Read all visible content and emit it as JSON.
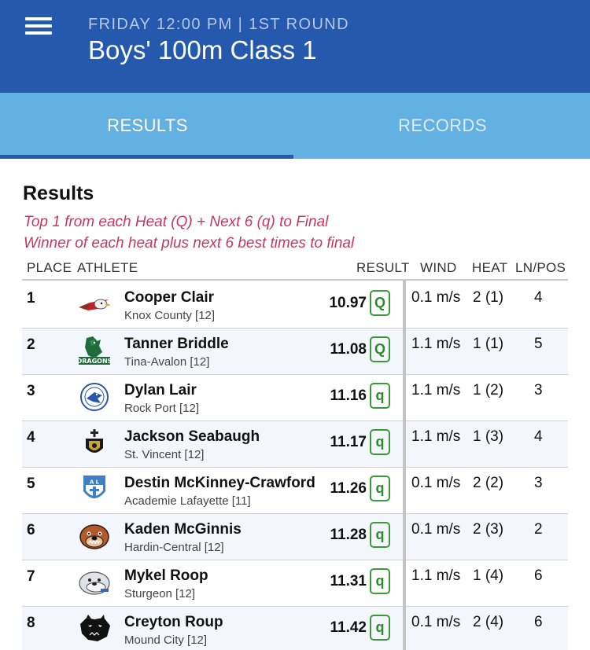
{
  "header": {
    "subtitle": "FRIDAY 12:00 PM | 1ST ROUND",
    "title": "Boys' 100m Class 1",
    "menu_icon": "hamburger-menu-icon",
    "background_color": "#2459ad"
  },
  "tabs": [
    {
      "label": "RESULTS",
      "active": true
    },
    {
      "label": "RECORDS",
      "active": false
    }
  ],
  "results": {
    "heading": "Results",
    "notes": [
      "Top 1 from each Heat (Q) + Next 6 (q) to Final",
      "Winner of each heat plus next 6 best times to final"
    ],
    "columns": {
      "place": "PLACE",
      "athlete": "ATHLETE",
      "result": "RESULT",
      "wind": "WIND",
      "heat": "HEAT",
      "ln_pos": "LN/POS"
    },
    "rows": [
      {
        "place": "1",
        "name": "Cooper Clair",
        "school": "Knox County [12]",
        "result": "10.97",
        "qual": "Q",
        "wind": "0.1 m/s",
        "heat": "2 (1)",
        "ln_pos": "4",
        "logo": "eagle-logo-icon"
      },
      {
        "place": "2",
        "name": "Tanner Briddle",
        "school": "Tina-Avalon [12]",
        "result": "11.08",
        "qual": "Q",
        "wind": "1.1 m/s",
        "heat": "1 (1)",
        "ln_pos": "5",
        "logo": "dragons-logo-icon"
      },
      {
        "place": "3",
        "name": "Dylan Lair",
        "school": "Rock Port [12]",
        "result": "11.16",
        "qual": "q",
        "wind": "1.1 m/s",
        "heat": "1 (2)",
        "ln_pos": "3",
        "logo": "bluejay-logo-icon"
      },
      {
        "place": "4",
        "name": "Jackson Seabaugh",
        "school": "St. Vincent [12]",
        "result": "11.17",
        "qual": "q",
        "wind": "1.1 m/s",
        "heat": "1 (3)",
        "ln_pos": "4",
        "logo": "crest-logo-icon"
      },
      {
        "place": "5",
        "name": "Destin McKinney-Crawford",
        "school": "Academie Lafayette [11]",
        "result": "11.26",
        "qual": "q",
        "wind": "0.1 m/s",
        "heat": "2 (2)",
        "ln_pos": "3",
        "logo": "shield-logo-icon"
      },
      {
        "place": "6",
        "name": "Kaden McGinnis",
        "school": "Hardin-Central [12]",
        "result": "11.28",
        "qual": "q",
        "wind": "0.1 m/s",
        "heat": "2 (3)",
        "ln_pos": "2",
        "logo": "bulldog-logo-icon"
      },
      {
        "place": "7",
        "name": "Mykel Roop",
        "school": "Sturgeon [12]",
        "result": "11.31",
        "qual": "q",
        "wind": "1.1 m/s",
        "heat": "1 (4)",
        "ln_pos": "6",
        "logo": "bulldog-gray-logo-icon"
      },
      {
        "place": "8",
        "name": "Creyton Roup",
        "school": "Mound City [12]",
        "result": "11.42",
        "qual": "q",
        "wind": "0.1 m/s",
        "heat": "2 (4)",
        "ln_pos": "6",
        "logo": "panther-logo-icon"
      }
    ]
  },
  "colors": {
    "tab_bar": "#63b0e2",
    "note_text": "#c8385a",
    "qualifier_green": "#2e8a2e"
  }
}
